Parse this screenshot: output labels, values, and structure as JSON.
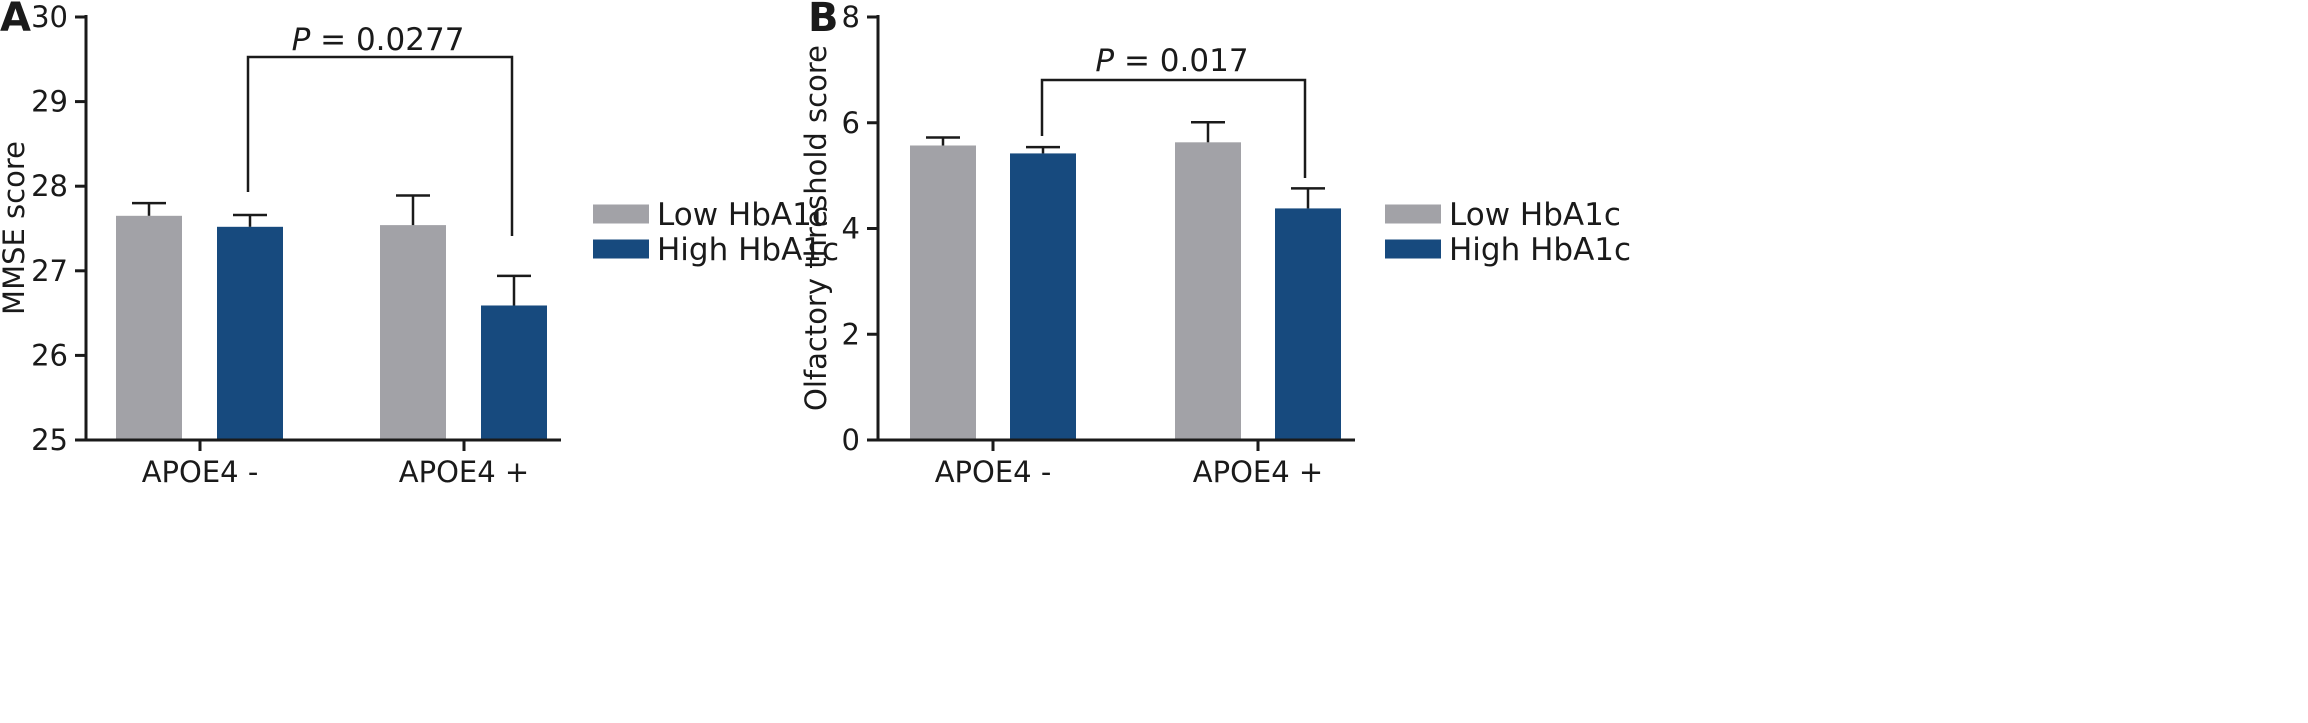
{
  "colors": {
    "low_hba1c": "#a2a2a7",
    "high_hba1c": "#174a7e",
    "axis": "#1a1a1a"
  },
  "chart_data": [
    {
      "panel_label": "A",
      "type": "bar",
      "categories": [
        "APOE4 -",
        "APOE4 +"
      ],
      "series": [
        {
          "name": "Low HbA1c",
          "values": [
            27.65,
            27.54
          ],
          "errors": [
            0.15,
            0.35
          ]
        },
        {
          "name": "High HbA1c",
          "values": [
            27.52,
            26.59
          ],
          "errors": [
            0.14,
            0.35
          ]
        }
      ],
      "ylabel": "MMSE score",
      "xlabel": "",
      "ylim": [
        25,
        30
      ],
      "yticks": [
        "25",
        "26",
        "27",
        "28",
        "29",
        "30"
      ],
      "legend": "right",
      "grid": false,
      "annotation": {
        "p_symbol": "P",
        "p_text": " = 0.0277",
        "from": [
          "APOE4 -",
          "High HbA1c"
        ],
        "to": [
          "APOE4 +",
          "High HbA1c"
        ]
      }
    },
    {
      "panel_label": "B",
      "type": "bar",
      "categories": [
        "APOE4 -",
        "APOE4 +"
      ],
      "series": [
        {
          "name": "Low HbA1c",
          "values": [
            5.57,
            5.63
          ],
          "errors": [
            0.15,
            0.38
          ]
        },
        {
          "name": "High HbA1c",
          "values": [
            5.42,
            4.38
          ],
          "errors": [
            0.12,
            0.38
          ]
        }
      ],
      "ylabel": "Olfactory threshold score",
      "xlabel": "",
      "ylim": [
        0,
        8
      ],
      "yticks": [
        "0",
        "2",
        "4",
        "6",
        "8"
      ],
      "legend": "right",
      "grid": false,
      "annotation": {
        "p_symbol": "P",
        "p_text": " = 0.017",
        "from": [
          "APOE4 -",
          "High HbA1c"
        ],
        "to": [
          "APOE4 +",
          "High HbA1c"
        ]
      }
    }
  ]
}
